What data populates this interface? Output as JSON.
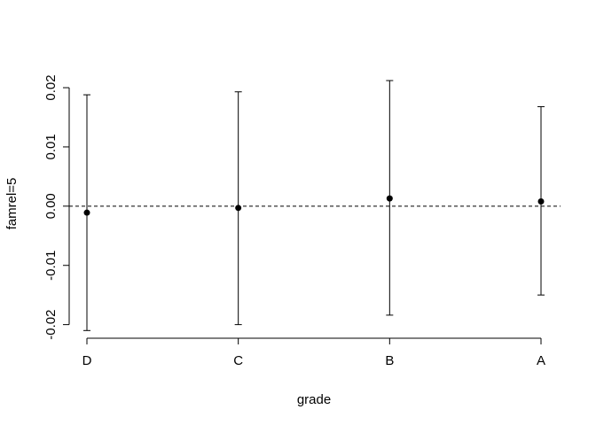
{
  "chart_data": {
    "type": "scatter",
    "style": "point estimates with error bars and dashed zero reference line",
    "categories": [
      "D",
      "C",
      "B",
      "A"
    ],
    "estimates": [
      -0.0011,
      -0.0003,
      0.0013,
      0.0008
    ],
    "lower": [
      -0.021,
      -0.02,
      -0.0184,
      -0.015
    ],
    "upper": [
      0.0188,
      0.0193,
      0.0212,
      0.0168
    ],
    "xlabel": "grade",
    "ylabel": "famrel=5",
    "ylim": [
      -0.022,
      0.0215
    ],
    "yticks": [
      -0.02,
      -0.01,
      0.0,
      0.01,
      0.02
    ],
    "ytick_labels": [
      "-0.02",
      "-0.01",
      "0.00",
      "0.01",
      "0.02"
    ],
    "reference_line": 0,
    "grid": false,
    "point_color": "#000000",
    "line_color": "#000000"
  }
}
